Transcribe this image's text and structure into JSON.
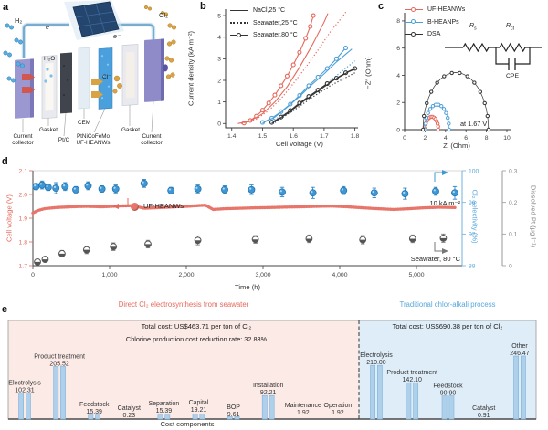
{
  "panel_letters": {
    "a": "a",
    "b": "b",
    "c": "c",
    "d": "d",
    "e": "e"
  },
  "panel_a": {
    "h2": "H₂",
    "cl2": "Cl₂",
    "e_left": "e⁻",
    "e_right": "e⁻",
    "h2o": "H₂O",
    "cl_minus": "Cl⁻",
    "parts": [
      "Current\ncollector",
      "Gasket",
      "Pt/C",
      "CEM",
      "PtNiCoFeMo\nUF-HEANWs",
      "Gasket",
      "Current\ncollector"
    ]
  },
  "chart_data": [
    {
      "id": "b",
      "type": "line",
      "xlabel": "Cell voltage (V)",
      "ylabel": "Current density (kA m⁻²)",
      "xlim": [
        1.38,
        1.81
      ],
      "ylim": [
        -0.2,
        5.3
      ],
      "xticks": [
        1.4,
        1.5,
        1.6,
        1.7,
        1.8
      ],
      "xtick_labels": [
        "1.4",
        "1.5",
        "1.6",
        "1.7",
        "1.8"
      ],
      "yticks": [
        0,
        1,
        2,
        3,
        4,
        5
      ],
      "ytick_labels": [
        "0",
        "1",
        "2",
        "3",
        "4",
        "5"
      ],
      "legend": [
        {
          "label": "NaCl,25 °C",
          "style": "solid"
        },
        {
          "label": "Seawater,25 °C",
          "style": "dotted"
        },
        {
          "label": "Seawater,80 °C",
          "style": "marker"
        }
      ],
      "series": [
        {
          "name": "UF-HEANWs Seawater 80 °C",
          "color": "#E4695C",
          "style": "marker",
          "points": [
            [
              1.44,
              0.02
            ],
            [
              1.46,
              0.14
            ],
            [
              1.48,
              0.34
            ],
            [
              1.5,
              0.62
            ],
            [
              1.52,
              0.95
            ],
            [
              1.54,
              1.32
            ],
            [
              1.56,
              1.75
            ],
            [
              1.58,
              2.2
            ],
            [
              1.6,
              2.72
            ],
            [
              1.62,
              3.3
            ],
            [
              1.64,
              3.95
            ],
            [
              1.655,
              4.5
            ],
            [
              1.665,
              5.0
            ]
          ]
        },
        {
          "name": "UF-HEANWs NaCl 25 °C",
          "color": "#E4695C",
          "style": "solid",
          "points": [
            [
              1.42,
              0.0
            ],
            [
              1.46,
              0.12
            ],
            [
              1.5,
              0.45
            ],
            [
              1.54,
              1.0
            ],
            [
              1.58,
              1.7
            ],
            [
              1.62,
              2.6
            ],
            [
              1.66,
              3.6
            ],
            [
              1.7,
              4.7
            ],
            [
              1.712,
              5.1
            ]
          ]
        },
        {
          "name": "UF-HEANWs Seawater 25 °C",
          "color": "#E4695C",
          "style": "dotted",
          "points": [
            [
              1.43,
              0.0
            ],
            [
              1.48,
              0.2
            ],
            [
              1.52,
              0.6
            ],
            [
              1.56,
              1.15
            ],
            [
              1.6,
              1.85
            ],
            [
              1.64,
              2.6
            ],
            [
              1.68,
              3.4
            ],
            [
              1.72,
              4.25
            ],
            [
              1.76,
              4.95
            ],
            [
              1.772,
              5.2
            ]
          ]
        },
        {
          "name": "B-HEANPs Seawater 80 °C",
          "color": "#4D9FD6",
          "style": "marker",
          "points": [
            [
              1.5,
              0.05
            ],
            [
              1.53,
              0.25
            ],
            [
              1.56,
              0.55
            ],
            [
              1.59,
              0.9
            ],
            [
              1.62,
              1.3
            ],
            [
              1.65,
              1.75
            ],
            [
              1.68,
              2.15
            ],
            [
              1.71,
              2.55
            ],
            [
              1.74,
              3.0
            ],
            [
              1.77,
              3.5
            ]
          ]
        },
        {
          "name": "B-HEANPs NaCl 25 °C",
          "color": "#4D9FD6",
          "style": "solid",
          "points": [
            [
              1.5,
              0.02
            ],
            [
              1.54,
              0.3
            ],
            [
              1.58,
              0.75
            ],
            [
              1.62,
              1.25
            ],
            [
              1.66,
              1.8
            ],
            [
              1.7,
              2.3
            ],
            [
              1.74,
              2.85
            ],
            [
              1.79,
              3.45
            ]
          ]
        },
        {
          "name": "B-HEANPs Seawater 25 °C",
          "color": "#4D9FD6",
          "style": "dotted",
          "points": [
            [
              1.52,
              0.05
            ],
            [
              1.58,
              0.5
            ],
            [
              1.64,
              1.1
            ],
            [
              1.7,
              1.75
            ],
            [
              1.76,
              2.45
            ],
            [
              1.8,
              2.9
            ]
          ]
        },
        {
          "name": "DSA Seawater 80 °C",
          "color": "#333333",
          "style": "marker",
          "points": [
            [
              1.53,
              0.05
            ],
            [
              1.56,
              0.3
            ],
            [
              1.59,
              0.6
            ],
            [
              1.62,
              0.95
            ],
            [
              1.65,
              1.25
            ],
            [
              1.68,
              1.55
            ],
            [
              1.71,
              1.85
            ],
            [
              1.74,
              2.1
            ],
            [
              1.77,
              2.35
            ],
            [
              1.8,
              2.55
            ]
          ]
        },
        {
          "name": "DSA NaCl 25 °C",
          "color": "#333333",
          "style": "solid",
          "points": [
            [
              1.53,
              0.02
            ],
            [
              1.58,
              0.45
            ],
            [
              1.63,
              1.0
            ],
            [
              1.68,
              1.5
            ],
            [
              1.73,
              2.0
            ],
            [
              1.78,
              2.4
            ],
            [
              1.8,
              2.52
            ]
          ]
        },
        {
          "name": "DSA Seawater 25 °C",
          "color": "#333333",
          "style": "dotted",
          "points": [
            [
              1.54,
              0.05
            ],
            [
              1.6,
              0.6
            ],
            [
              1.66,
              1.2
            ],
            [
              1.72,
              1.75
            ],
            [
              1.78,
              2.2
            ],
            [
              1.8,
              2.35
            ]
          ]
        }
      ]
    },
    {
      "id": "c",
      "type": "scatter",
      "xlabel": "Z′ (Ohm)",
      "ylabel": "−Z″ (Ohm)",
      "xlim": [
        0,
        10
      ],
      "ylim": [
        0,
        8.6
      ],
      "xticks": [
        0,
        2,
        4,
        6,
        8,
        10
      ],
      "xtick_labels": [
        "0",
        "2",
        "4",
        "6",
        "8",
        "10"
      ],
      "yticks": [
        0,
        2,
        4,
        6,
        8
      ],
      "ytick_labels": [
        "0",
        "2",
        "4",
        "6",
        "8"
      ],
      "legend": [
        {
          "label": "UF-HEANWs",
          "color": "#E4695C"
        },
        {
          "label": "B-HEANPs",
          "color": "#4D9FD6"
        },
        {
          "label": "DSA",
          "color": "#333333"
        }
      ],
      "annotation": "at 1.67 V",
      "circuit": {
        "r1_main": "R",
        "r1_sub": "s",
        "r2_main": "R",
        "r2_sub": "ct",
        "cpe": "CPE"
      },
      "arcs": [
        {
          "name": "UF-HEANWs",
          "color": "#E4695C",
          "x_start": 2.0,
          "x_end": 3.3,
          "peak": 0.95
        },
        {
          "name": "B-HEANPs",
          "color": "#4D9FD6",
          "x_start": 2.0,
          "x_end": 4.35,
          "peak": 1.85
        },
        {
          "name": "DSA",
          "color": "#333333",
          "x_start": 1.8,
          "x_end": 8.2,
          "peak": 4.2
        }
      ]
    },
    {
      "id": "d",
      "type": "line+scatter",
      "xlabel": "Time (h)",
      "ylabel_left": "Cell voltage (V)",
      "ylabel_right1": "Cl₂ selectivity (%)",
      "ylabel_right2": "Dissolved Pt (μg l⁻¹)",
      "xlim": [
        0,
        5600
      ],
      "xticks": [
        0,
        1000,
        2000,
        3000,
        4000,
        5000
      ],
      "xtick_labels": [
        "0",
        "1,000",
        "2,000",
        "3,000",
        "4,000",
        "5,000"
      ],
      "ylim_left": [
        1.7,
        2.1
      ],
      "yticks_left": [
        1.7,
        1.8,
        1.9,
        2.0,
        2.1
      ],
      "ytick_labels_left": [
        "1.7",
        "1.8",
        "1.9",
        "2.0",
        "2.1"
      ],
      "ylim_right1": [
        88,
        100
      ],
      "yticks_right1": [
        88,
        92,
        96,
        100
      ],
      "ytick_labels_right1": [
        "88",
        "92",
        "96",
        "100"
      ],
      "ylim_right2": [
        0,
        0.3
      ],
      "yticks_right2": [
        0,
        0.1,
        0.2,
        0.3
      ],
      "ytick_labels_right2": [
        "0",
        "0.1",
        "0.2",
        "0.3"
      ],
      "legend_label": "UF-HEANWs",
      "annotation_current": "10 kA m⁻²",
      "annotation_condition": "Seawater, 80 °C",
      "voltage_trace": {
        "color": "#E8756A",
        "points": [
          [
            0,
            1.922
          ],
          [
            60,
            1.932
          ],
          [
            150,
            1.94
          ],
          [
            300,
            1.945
          ],
          [
            500,
            1.948
          ],
          [
            700,
            1.95
          ],
          [
            900,
            1.948
          ],
          [
            1100,
            1.951
          ],
          [
            1300,
            1.953
          ],
          [
            1450,
            1.942
          ],
          [
            1600,
            1.944
          ],
          [
            1800,
            1.947
          ],
          [
            2000,
            1.95
          ],
          [
            2150,
            1.953
          ],
          [
            2250,
            1.955
          ],
          [
            2350,
            1.937
          ],
          [
            2500,
            1.94
          ],
          [
            2700,
            1.942
          ],
          [
            2900,
            1.944
          ],
          [
            3100,
            1.945
          ],
          [
            3300,
            1.947
          ],
          [
            3500,
            1.948
          ],
          [
            3700,
            1.95
          ],
          [
            3900,
            1.951
          ],
          [
            4100,
            1.948
          ],
          [
            4300,
            1.944
          ],
          [
            4500,
            1.94
          ],
          [
            4700,
            1.937
          ],
          [
            4900,
            1.94
          ],
          [
            5100,
            1.944
          ],
          [
            5300,
            1.946
          ],
          [
            5500,
            1.945
          ]
        ]
      },
      "selectivity": {
        "color": "#3E97D4",
        "x": [
          40,
          120,
          200,
          300,
          420,
          560,
          720,
          900,
          1080,
          1450,
          1800,
          2150,
          2500,
          2850,
          3250,
          3650,
          4050,
          4450,
          4850,
          5250,
          5500
        ],
        "y": [
          98.0,
          98.2,
          97.9,
          97.8,
          98.0,
          97.6,
          98.1,
          97.7,
          97.7,
          98.4,
          97.5,
          97.7,
          97.6,
          97.6,
          97.3,
          97.2,
          97.5,
          97.2,
          97.1,
          97.4,
          97.2
        ],
        "err": [
          0.4,
          0.5,
          0.4,
          0.7,
          0.5,
          0.4,
          0.5,
          0.4,
          0.5,
          0.5,
          0.4,
          0.5,
          0.5,
          0.6,
          0.6,
          0.7,
          0.5,
          0.6,
          0.7,
          0.5,
          0.8
        ]
      },
      "dissolved_pt": {
        "color": "#666666",
        "x": [
          60,
          160,
          380,
          700,
          1050,
          1500,
          2150,
          2900,
          3600,
          4300,
          4950,
          5350
        ],
        "y": [
          0.012,
          0.02,
          0.038,
          0.05,
          0.06,
          0.068,
          0.08,
          0.083,
          0.085,
          0.082,
          0.085,
          0.087
        ],
        "err": [
          0.006,
          0.008,
          0.01,
          0.012,
          0.012,
          0.012,
          0.014,
          0.012,
          0.012,
          0.013,
          0.012,
          0.013
        ]
      }
    },
    {
      "id": "e",
      "type": "bar",
      "xlabel": "Cost components",
      "bar_color": "#AFD0EA",
      "bar_stroke": "#7FB2DC",
      "left": {
        "title": "Direct Cl₂ electrosynthesis from seawater",
        "title_color": "#E4695C",
        "bg": "#FBEAE6",
        "total": "Total cost: US$463.71 per ton of Cl₂",
        "note": "Chlorine production cost reduction rate: 32.83%",
        "categories": [
          "Electrolysis",
          "Product treatment",
          "Feedstock",
          "Catalyst",
          "Separation",
          "Capital",
          "BOP",
          "Installation",
          "Maintenance",
          "Operation"
        ],
        "values": [
          102.31,
          205.52,
          15.39,
          0.23,
          15.39,
          19.21,
          9.61,
          92.21,
          1.92,
          1.92
        ],
        "value_labels": [
          "102.31",
          "205.52",
          "15.39",
          "0.23",
          "15.39",
          "19.21",
          "9.61",
          "92.21",
          "1.92",
          "1.92"
        ]
      },
      "right": {
        "title": "Traditional chlor-alkali process",
        "title_color": "#58A8DB",
        "bg": "#DFEDF8",
        "total": "Total cost: US$690.38 per ton of Cl₂",
        "categories": [
          "Electrolysis",
          "Product treatment",
          "Feedstock",
          "Catalyst",
          "Other"
        ],
        "values": [
          210.0,
          142.1,
          90.9,
          0.91,
          246.47
        ],
        "value_labels": [
          "210.00",
          "142.10",
          "90.90",
          "0.91",
          "246.47"
        ]
      }
    }
  ]
}
